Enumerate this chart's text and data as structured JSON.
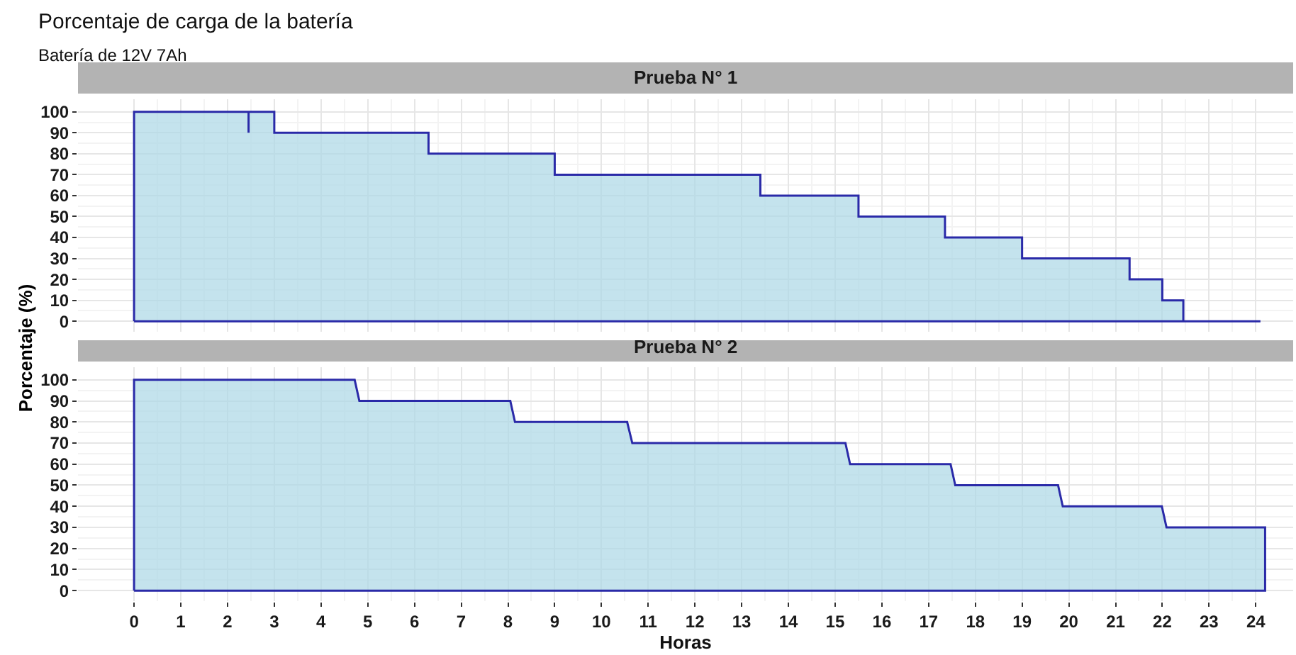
{
  "chart_data": [
    {
      "type": "area",
      "title": "Prueba N° 1",
      "annotations": [
        "Porcentaje de carga de la batería",
        "Batería de 12V 7Ah"
      ],
      "ylabel": "Porcentaje (%)",
      "series": [
        {
          "color": "#2a2aa8",
          "x": [
            0,
            0,
            2.45,
            2.45,
            2.45,
            3.0,
            3.0,
            6.3,
            6.3,
            9.0,
            9.0,
            13.4,
            13.4,
            15.5,
            15.5,
            17.35,
            17.35,
            19.0,
            19.0,
            21.3,
            21.3,
            22.0,
            22.0,
            22.45,
            22.45,
            24.1,
            0
          ],
          "values": [
            0,
            100,
            100,
            90,
            100,
            100,
            90,
            90,
            80,
            80,
            70,
            70,
            60,
            60,
            50,
            50,
            40,
            40,
            30,
            30,
            20,
            20,
            10,
            10,
            0,
            0,
            0
          ]
        }
      ],
      "xlim": [
        -1.2,
        24.8
      ],
      "xticks": [
        0,
        1,
        2,
        3,
        4,
        5,
        6,
        7,
        8,
        9,
        10,
        11,
        12,
        13,
        14,
        15,
        16,
        17,
        18,
        19,
        20,
        21,
        22,
        23,
        24
      ],
      "ylim": [
        -5,
        106
      ],
      "yticks": [
        0,
        10,
        20,
        30,
        40,
        50,
        60,
        70,
        80,
        90,
        100
      ],
      "grid": true,
      "tick_labels": "y"
    },
    {
      "type": "area",
      "title": "Prueba N° 2",
      "xlabel": "Horas",
      "series": [
        {
          "color": "#2a2aa8",
          "x": [
            0,
            0,
            4.72,
            4.82,
            8.05,
            8.15,
            10.55,
            10.66,
            15.22,
            15.32,
            17.47,
            17.57,
            19.77,
            19.87,
            21.99,
            22.09,
            24.2,
            24.2,
            0
          ],
          "values": [
            0,
            100,
            100,
            90,
            90,
            80,
            80,
            70,
            70,
            60,
            60,
            50,
            50,
            40,
            40,
            30,
            30,
            0,
            0
          ]
        }
      ],
      "xlim": [
        -1.2,
        24.8
      ],
      "xticks": [
        0,
        1,
        2,
        3,
        4,
        5,
        6,
        7,
        8,
        9,
        10,
        11,
        12,
        13,
        14,
        15,
        16,
        17,
        18,
        19,
        20,
        21,
        22,
        23,
        24
      ],
      "ylim": [
        -5,
        106
      ],
      "yticks": [
        0,
        10,
        20,
        30,
        40,
        50,
        60,
        70,
        80,
        90,
        100
      ],
      "grid": true
    }
  ]
}
